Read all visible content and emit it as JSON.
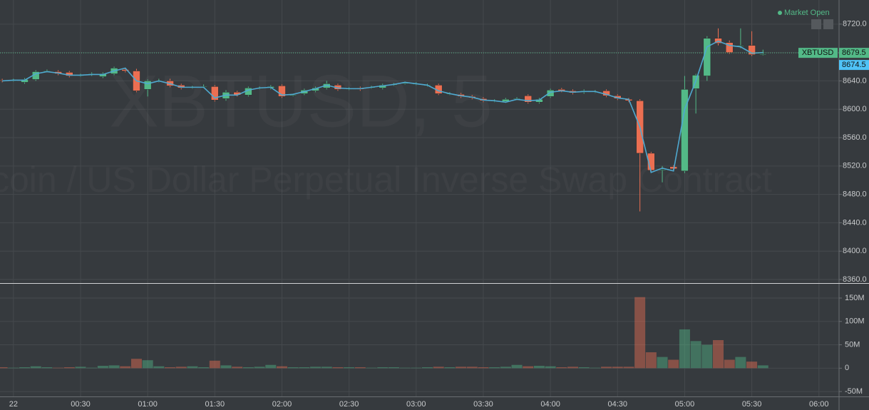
{
  "chart_data": {
    "type": "candlestick",
    "watermark": "XBTUSD, 5",
    "watermark_subtitle": "coin / US Dollar Perpetual Inverse Swap Contract",
    "status": "Market Open",
    "x": [
      "23:55",
      "00:00",
      "00:05",
      "00:10",
      "00:15",
      "00:20",
      "00:25",
      "00:30",
      "00:35",
      "00:40",
      "00:45",
      "00:50",
      "00:55",
      "01:00",
      "01:05",
      "01:10",
      "01:15",
      "01:20",
      "01:25",
      "01:30",
      "01:35",
      "01:40",
      "01:45",
      "01:50",
      "01:55",
      "02:00",
      "02:05",
      "02:10",
      "02:15",
      "02:20",
      "02:25",
      "02:30",
      "02:35",
      "02:40",
      "02:45",
      "02:50",
      "02:55",
      "03:00",
      "03:05",
      "03:10",
      "03:15",
      "03:20",
      "03:25",
      "03:30",
      "03:35",
      "03:40",
      "03:45",
      "03:50",
      "03:55",
      "04:00",
      "04:05",
      "04:10",
      "04:15",
      "04:20",
      "04:25",
      "04:30",
      "04:35",
      "04:40",
      "04:45",
      "04:50",
      "04:55",
      "05:00",
      "05:05",
      "05:10",
      "05:15",
      "05:20",
      "05:25",
      "05:30",
      "05:35"
    ],
    "candles": {
      "open": [
        8641,
        8641,
        8638,
        8642,
        8654,
        8653,
        8652,
        8648,
        8649,
        8646,
        8650,
        8656,
        8654,
        8628,
        8640,
        8640,
        8634,
        8631,
        8632,
        8632,
        8615,
        8624,
        8620,
        8630,
        8630,
        8633,
        8620,
        8622,
        8626,
        8630,
        8634,
        8629,
        8630,
        8631,
        8630,
        8635,
        8637,
        8636,
        8634,
        8634,
        8622,
        8621,
        8618,
        8615,
        8612,
        8611,
        8615,
        8619,
        8610,
        8618,
        8628,
        8626,
        8624,
        8625,
        8626,
        8619,
        8614,
        8612,
        8538,
        8515,
        8519,
        8513,
        8629,
        8647,
        8700,
        8694,
        8690,
        8690,
        8678
      ],
      "high": [
        8643,
        8643,
        8644,
        8655,
        8656,
        8655,
        8654,
        8650,
        8652,
        8652,
        8660,
        8658,
        8657,
        8642,
        8643,
        8643,
        8636,
        8633,
        8635,
        8634,
        8627,
        8626,
        8632,
        8632,
        8634,
        8635,
        8622,
        8629,
        8632,
        8640,
        8636,
        8631,
        8632,
        8633,
        8636,
        8637,
        8639,
        8638,
        8636,
        8636,
        8624,
        8623,
        8620,
        8617,
        8614,
        8616,
        8617,
        8621,
        8616,
        8629,
        8630,
        8628,
        8628,
        8627,
        8628,
        8621,
        8616,
        8614,
        8540,
        8520,
        8521,
        8647,
        8650,
        8703,
        8714,
        8697,
        8714,
        8710,
        8684
      ],
      "low": [
        8638,
        8639,
        8636,
        8640,
        8652,
        8648,
        8645,
        8646,
        8647,
        8644,
        8648,
        8652,
        8624,
        8618,
        8638,
        8631,
        8628,
        8629,
        8630,
        8611,
        8612,
        8618,
        8618,
        8628,
        8628,
        8616,
        8618,
        8620,
        8624,
        8628,
        8626,
        8627,
        8626,
        8629,
        8628,
        8633,
        8635,
        8634,
        8632,
        8620,
        8620,
        8616,
        8614,
        8610,
        8610,
        8609,
        8613,
        8608,
        8608,
        8616,
        8624,
        8621,
        8622,
        8623,
        8617,
        8613,
        8610,
        8456,
        8512,
        8497,
        8514,
        8510,
        8594,
        8640,
        8690,
        8678,
        8686,
        8675,
        8676
      ],
      "close": [
        8640,
        8641,
        8642,
        8653,
        8654,
        8650,
        8647,
        8648,
        8650,
        8650,
        8658,
        8654,
        8626,
        8640,
        8640,
        8633,
        8630,
        8631,
        8632,
        8613,
        8624,
        8620,
        8630,
        8630,
        8632,
        8618,
        8620,
        8627,
        8630,
        8636,
        8628,
        8629,
        8628,
        8631,
        8634,
        8635,
        8637,
        8636,
        8634,
        8622,
        8622,
        8618,
        8616,
        8612,
        8612,
        8614,
        8615,
        8610,
        8614,
        8627,
        8626,
        8623,
        8626,
        8625,
        8619,
        8615,
        8612,
        8538,
        8514,
        8515,
        8516,
        8628,
        8648,
        8700,
        8693,
        8680,
        8690,
        8677,
        8678
      ]
    },
    "up_color": "#53b987",
    "down_color": "#eb6f52",
    "line": {
      "color": "#4fa9d0",
      "values": [
        8640,
        8641,
        8641,
        8650,
        8653,
        8651,
        8648,
        8648,
        8649,
        8649,
        8654,
        8658,
        8640,
        8636,
        8640,
        8636,
        8631,
        8631,
        8631,
        8616,
        8620,
        8620,
        8627,
        8630,
        8631,
        8620,
        8621,
        8625,
        8629,
        8634,
        8630,
        8629,
        8629,
        8631,
        8633,
        8635,
        8638,
        8636,
        8634,
        8626,
        8622,
        8619,
        8617,
        8613,
        8612,
        8610,
        8614,
        8612,
        8613,
        8624,
        8626,
        8624,
        8625,
        8625,
        8621,
        8616,
        8614,
        8575,
        8511,
        8517,
        8513,
        8600,
        8640,
        8688,
        8696,
        8690,
        8688,
        8679,
        8680
      ]
    },
    "price_labels": [
      {
        "name": "XBTUSD",
        "value": 8679.5,
        "color": "#53b987"
      },
      {
        "value": 8674.5,
        "color": "#4fc3f7"
      }
    ],
    "xlim": [
      "23:54",
      "06:09"
    ],
    "xticks": [
      {
        "value": "00:00",
        "label": "22"
      },
      "00:30",
      "01:00",
      "01:30",
      "02:00",
      "02:30",
      "03:00",
      "03:30",
      "04:00",
      "04:30",
      "05:00",
      "05:30",
      "06:00"
    ],
    "ylim": [
      8355,
      8754
    ],
    "yticks": [
      {
        "value": 8360,
        "label": "8360.0"
      },
      {
        "value": 8400,
        "label": "8400.0"
      },
      {
        "value": 8440,
        "label": "8440.0"
      },
      {
        "value": 8480,
        "label": "8480.0"
      },
      {
        "value": 8520,
        "label": "8520.0"
      },
      {
        "value": 8560,
        "label": "8560.0"
      },
      {
        "value": 8600,
        "label": "8600.0"
      },
      {
        "value": 8640,
        "label": "8640.0"
      },
      {
        "value": 8680,
        "label": "8680.0"
      },
      {
        "value": 8720,
        "label": "8720.0"
      }
    ],
    "grid": true,
    "volume": {
      "values": [
        2,
        1,
        2,
        4,
        2,
        1,
        2,
        3,
        1,
        5,
        6,
        4,
        20,
        17,
        4,
        2,
        3,
        4,
        2,
        16,
        6,
        3,
        2,
        3,
        7,
        4,
        2,
        2,
        3,
        3,
        2,
        2,
        2,
        1,
        2,
        2,
        1,
        1,
        2,
        3,
        2,
        3,
        3,
        2,
        2,
        3,
        7,
        4,
        5,
        4,
        2,
        3,
        2,
        1,
        3,
        3,
        3,
        152,
        34,
        24,
        18,
        83,
        58,
        50,
        60,
        18,
        24,
        14,
        6
      ],
      "ylim": [
        -59,
        179
      ],
      "yticks": [
        {
          "value": -50,
          "label": "-50M"
        },
        {
          "value": 0,
          "label": "0"
        },
        {
          "value": 50,
          "label": "50M"
        },
        {
          "value": 100,
          "label": "100M"
        },
        {
          "value": 150,
          "label": "150M"
        }
      ]
    }
  }
}
